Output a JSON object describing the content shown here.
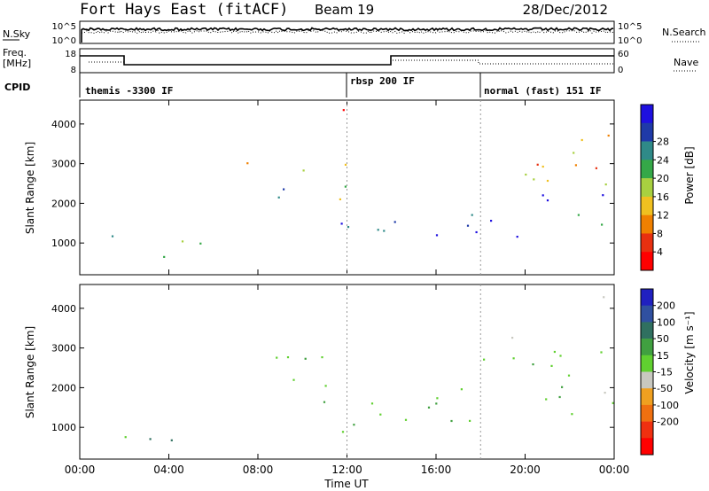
{
  "header": {
    "station": "Fort Hays East (fitACF)",
    "beam": "Beam 19",
    "date": "28/Dec/2012"
  },
  "ctrl": {
    "nsky_label": "N.Sky",
    "nsky_ticks": [
      "10^5",
      "10^0"
    ],
    "nsearch_label": "N.Search",
    "nsearch_ticks": [
      "10^5",
      "10^0"
    ],
    "freq_label": "Freq.",
    "freq_unit": "[MHz]",
    "freq_ticks": [
      "18",
      "8"
    ],
    "nave_label": "Nave",
    "nave_ticks": [
      "60",
      "0"
    ],
    "cpid_label": "CPID",
    "cpid_segments": [
      {
        "label": "themis -3300 IF",
        "start_hr": 0
      },
      {
        "label": "rbsp 200 IF",
        "start_hr": 12
      },
      {
        "label": "normal (fast) 151 IF",
        "start_hr": 18
      }
    ]
  },
  "chart_data": [
    {
      "type": "heatmap",
      "name": "power",
      "ylabel": "Slant Range [km]",
      "ylim": [
        200,
        4600
      ],
      "yticks": [
        "1000",
        "2000",
        "3000",
        "4000"
      ],
      "xlim_hr": [
        0,
        24
      ],
      "colorbar": {
        "label": "Power [dB]",
        "ticks": [
          "4",
          "8",
          "12",
          "16",
          "20",
          "24",
          "28"
        ],
        "colors": [
          "#1e10e0",
          "#1f3aa8",
          "#2f8a88",
          "#35a848",
          "#a8d040",
          "#f0c020",
          "#f08000",
          "#e83010",
          "#ff0000"
        ]
      },
      "echo_regions": [
        {
          "t0": 0.3,
          "t1": 0.9,
          "r0": 2400,
          "r1": 2900,
          "level": 0.45
        },
        {
          "t0": 0.6,
          "t1": 5.4,
          "r0": 400,
          "r1": 1300,
          "level": 0.55
        },
        {
          "t0": 6.3,
          "t1": 7.8,
          "r0": 2900,
          "r1": 3600,
          "level": 0.2
        },
        {
          "t0": 7.8,
          "t1": 12.5,
          "r0": 1900,
          "r1": 3200,
          "level": 0.6
        },
        {
          "t0": 11.0,
          "t1": 14.2,
          "r0": 900,
          "r1": 2300,
          "level": 0.7
        },
        {
          "t0": 13.3,
          "t1": 24.0,
          "r0": 1100,
          "r1": 2000,
          "level": 0.9
        },
        {
          "t0": 15.0,
          "t1": 24.0,
          "r0": 2300,
          "r1": 3300,
          "level": 0.45
        },
        {
          "t0": 20.0,
          "t1": 24.0,
          "r0": 1600,
          "r1": 2700,
          "level": 0.8
        },
        {
          "t0": 11.5,
          "t1": 12.5,
          "r0": 3600,
          "r1": 4500,
          "level": 0.25
        },
        {
          "t0": 22.5,
          "t1": 24.0,
          "r0": 3200,
          "r1": 4500,
          "level": 0.3
        }
      ]
    },
    {
      "type": "heatmap",
      "name": "velocity",
      "ylabel": "Slant Range [km]",
      "ylim": [
        200,
        4600
      ],
      "yticks": [
        "1000",
        "2000",
        "3000",
        "4000"
      ],
      "xlim_hr": [
        0,
        24
      ],
      "xticks": [
        "00:00",
        "04:00",
        "08:00",
        "12:00",
        "16:00",
        "20:00",
        "00:00"
      ],
      "xlabel": "Time UT",
      "colorbar": {
        "label": "Velocity [m s⁻¹]",
        "ticks": [
          "200",
          "100",
          "50",
          "15",
          "-15",
          "-50",
          "-100",
          "-200"
        ],
        "colors": [
          "#2020c0",
          "#3050a0",
          "#307060",
          "#40a040",
          "#60d030",
          "#c8c8c0",
          "#f0a020",
          "#f07010",
          "#f03010",
          "#ff0000"
        ]
      },
      "echo_regions": [
        {
          "t0": 0.3,
          "t1": 0.9,
          "r0": 2300,
          "r1": 2900,
          "vel": 0
        },
        {
          "t0": 0.7,
          "t1": 4.8,
          "r0": 300,
          "r1": 800,
          "vel": 60
        },
        {
          "t0": 2.0,
          "t1": 4.2,
          "r0": 600,
          "r1": 1300,
          "vel": 0
        },
        {
          "t0": 7.8,
          "t1": 12.5,
          "r0": 1900,
          "r1": 3200,
          "vel": 0
        },
        {
          "t0": 10.5,
          "t1": 14.2,
          "r0": 900,
          "r1": 2300,
          "vel": 0
        },
        {
          "t0": 13.3,
          "t1": 24.0,
          "r0": 1100,
          "r1": 2000,
          "vel": 0
        },
        {
          "t0": 15.0,
          "t1": 24.0,
          "r0": 2300,
          "r1": 3300,
          "vel": 0
        },
        {
          "t0": 20.0,
          "t1": 24.0,
          "r0": 1600,
          "r1": 2700,
          "vel": 0
        },
        {
          "t0": 8.5,
          "t1": 9.8,
          "r0": 2100,
          "r1": 2500,
          "vel": 60
        },
        {
          "t0": 12.0,
          "t1": 13.0,
          "r0": 1200,
          "r1": 1700,
          "vel": 60
        },
        {
          "t0": 18.5,
          "t1": 21.5,
          "r0": 2900,
          "r1": 3300,
          "vel": -50
        },
        {
          "t0": 22.0,
          "t1": 23.5,
          "r0": 3600,
          "r1": 4500,
          "vel": -30
        }
      ]
    }
  ]
}
